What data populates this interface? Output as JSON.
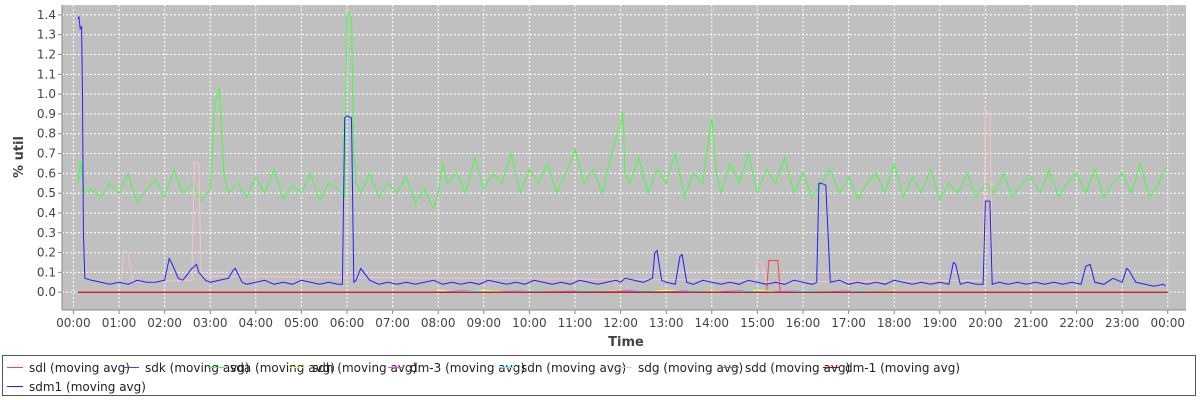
{
  "chart_data": {
    "type": "line",
    "title": "",
    "xlabel": "Time",
    "ylabel": "% util",
    "ylim": [
      -0.09,
      1.45
    ],
    "xlim": [
      -0.25,
      24.4
    ],
    "grid": true,
    "legend_position": "bottom",
    "y_ticks": [
      "0.0",
      "0.1",
      "0.2",
      "0.3",
      "0.4",
      "0.5",
      "0.6",
      "0.7",
      "0.8",
      "0.9",
      "1.0",
      "1.1",
      "1.2",
      "1.3",
      "1.4"
    ],
    "x_ticks": [
      "00:00",
      "01:00",
      "02:00",
      "03:00",
      "04:00",
      "05:00",
      "06:00",
      "07:00",
      "08:00",
      "09:00",
      "10:00",
      "11:00",
      "12:00",
      "13:00",
      "14:00",
      "15:00",
      "16:00",
      "17:00",
      "18:00",
      "19:00",
      "20:00",
      "21:00",
      "22:00",
      "23:00",
      "00:00"
    ],
    "series": [
      {
        "name": "sdl (moving avg)",
        "color": "#ff4040",
        "x": [
          0.1,
          15.2,
          15.25,
          15.3,
          15.45,
          15.5,
          24
        ],
        "y": [
          0.0,
          0.0,
          0.16,
          0.16,
          0.16,
          0.0,
          0.0
        ]
      },
      {
        "name": "sdk (moving avg)",
        "color": "#4040ff",
        "x": [],
        "y": []
      },
      {
        "name": "sda (moving avg)",
        "color": "#40ff40",
        "x": [
          0.1,
          0.15,
          0.25,
          0.4,
          0.6,
          0.8,
          1.0,
          1.2,
          1.4,
          1.6,
          1.8,
          2.0,
          2.2,
          2.4,
          2.6,
          2.8,
          3.0,
          3.1,
          3.2,
          3.3,
          3.4,
          3.6,
          3.8,
          4.0,
          4.2,
          4.4,
          4.6,
          4.8,
          5.0,
          5.2,
          5.4,
          5.6,
          5.8,
          5.95,
          6.0,
          6.05,
          6.1,
          6.15,
          6.2,
          6.3,
          6.5,
          6.7,
          6.9,
          7.1,
          7.3,
          7.5,
          7.7,
          7.9,
          8.0,
          8.1,
          8.2,
          8.4,
          8.6,
          8.8,
          9.0,
          9.2,
          9.4,
          9.6,
          9.8,
          10.0,
          10.2,
          10.4,
          10.6,
          10.8,
          11.0,
          11.2,
          11.4,
          11.6,
          11.8,
          12.0,
          12.05,
          12.1,
          12.2,
          12.4,
          12.6,
          12.8,
          13.0,
          13.2,
          13.4,
          13.6,
          13.8,
          14.0,
          14.1,
          14.2,
          14.4,
          14.6,
          14.8,
          15.0,
          15.2,
          15.4,
          15.6,
          15.8,
          16.0,
          16.2,
          16.4,
          16.6,
          16.8,
          17.0,
          17.2,
          17.4,
          17.6,
          17.8,
          18.0,
          18.2,
          18.4,
          18.6,
          18.8,
          19.0,
          19.2,
          19.4,
          19.6,
          19.8,
          20.0,
          20.2,
          20.4,
          20.6,
          20.8,
          21.0,
          21.2,
          21.4,
          21.6,
          21.8,
          22.0,
          22.2,
          22.4,
          22.6,
          22.8,
          23.0,
          23.2,
          23.4,
          23.6,
          23.8,
          23.95
        ],
        "y": [
          0.55,
          0.66,
          0.5,
          0.52,
          0.48,
          0.55,
          0.5,
          0.6,
          0.45,
          0.52,
          0.57,
          0.48,
          0.62,
          0.5,
          0.55,
          0.46,
          0.52,
          0.95,
          1.03,
          0.6,
          0.5,
          0.55,
          0.48,
          0.58,
          0.5,
          0.62,
          0.47,
          0.54,
          0.5,
          0.6,
          0.46,
          0.55,
          0.52,
          0.48,
          1.4,
          1.41,
          1.38,
          0.7,
          0.55,
          0.5,
          0.6,
          0.48,
          0.55,
          0.5,
          0.58,
          0.45,
          0.52,
          0.42,
          0.5,
          0.65,
          0.55,
          0.6,
          0.5,
          0.68,
          0.52,
          0.6,
          0.55,
          0.7,
          0.5,
          0.62,
          0.55,
          0.65,
          0.5,
          0.6,
          0.72,
          0.55,
          0.62,
          0.5,
          0.7,
          0.85,
          0.91,
          0.6,
          0.55,
          0.68,
          0.5,
          0.62,
          0.55,
          0.7,
          0.48,
          0.6,
          0.55,
          0.88,
          0.6,
          0.5,
          0.65,
          0.55,
          0.7,
          0.5,
          0.62,
          0.55,
          0.68,
          0.5,
          0.6,
          0.48,
          0.55,
          0.62,
          0.5,
          0.58,
          0.47,
          0.55,
          0.6,
          0.5,
          0.65,
          0.48,
          0.58,
          0.5,
          0.62,
          0.47,
          0.55,
          0.5,
          0.6,
          0.48,
          0.55,
          0.5,
          0.6,
          0.48,
          0.55,
          0.58,
          0.5,
          0.62,
          0.48,
          0.55,
          0.6,
          0.5,
          0.62,
          0.48,
          0.55,
          0.6,
          0.5,
          0.65,
          0.48,
          0.55,
          0.63
        ]
      },
      {
        "name": "sdh (moving avg)",
        "color": "#ffff40",
        "x": [
          8,
          8.5,
          9,
          9.5,
          10,
          10.5,
          11,
          11.5,
          12,
          12.5,
          13,
          13.5,
          14,
          14.5,
          15,
          15.5,
          16,
          16.5,
          17,
          17.5,
          18
        ],
        "y": [
          0.01,
          0.0,
          0.01,
          0.0,
          0.005,
          0.0,
          0.01,
          0.0,
          0.01,
          0.0,
          0.01,
          0.0,
          0.005,
          0.0,
          0.01,
          0.0,
          0.005,
          0.0,
          0.01,
          0.0,
          0.005
        ]
      },
      {
        "name": "dm-3 (moving avg)",
        "color": "#ff40ff",
        "x": [
          8,
          8.6,
          9.2,
          9.8,
          10.4,
          11,
          11.6,
          12.2,
          12.8,
          13.4,
          14,
          14.6,
          15.2,
          15.8,
          16.4,
          17,
          17.6,
          18
        ],
        "y": [
          0.0,
          0.008,
          0.0,
          0.006,
          0.0,
          0.008,
          0.0,
          0.01,
          0.0,
          0.006,
          0.0,
          0.008,
          0.0,
          0.006,
          0.0,
          0.008,
          0.0,
          0.0
        ]
      },
      {
        "name": "sdn (moving avg)",
        "color": "#40ffff",
        "x": [
          8.2,
          8.8,
          9.4,
          10,
          10.6,
          11.2,
          11.8,
          12.4,
          13,
          13.6,
          14.2,
          14.8,
          15.4,
          16,
          16.6,
          17.2,
          17.8
        ],
        "y": [
          0.0,
          0.006,
          0.0,
          0.005,
          0.0,
          0.006,
          0.0,
          0.007,
          0.0,
          0.005,
          0.0,
          0.006,
          0.0,
          0.005,
          0.0,
          0.006,
          0.0
        ]
      },
      {
        "name": "sdg (moving avg)",
        "color": "#ffc0c0",
        "x": [
          1.05,
          1.1,
          1.2,
          1.3,
          2.6,
          2.65,
          2.75,
          2.8,
          14.95,
          15.0,
          15.1,
          15.2,
          19.95,
          20.0,
          20.1,
          20.15
        ],
        "y": [
          0.05,
          0.21,
          0.2,
          0.05,
          0.06,
          0.66,
          0.65,
          0.08,
          0.06,
          0.15,
          0.15,
          0.05,
          0.06,
          0.92,
          0.9,
          0.06
        ]
      },
      {
        "name": "sdd (moving avg)",
        "color": "#808080",
        "x": [
          8,
          12,
          16,
          18
        ],
        "y": [
          0.0,
          0.003,
          0.0,
          0.002
        ]
      },
      {
        "name": "dm-1 (moving avg)",
        "color": "#c00000",
        "x": [
          0.1,
          24
        ],
        "y": [
          0.0,
          0.0
        ]
      },
      {
        "name": "sdm1 (moving avg)",
        "color": "#2020ff",
        "x": [
          0.1,
          0.12,
          0.15,
          0.18,
          0.2,
          0.22,
          0.25,
          0.4,
          0.6,
          0.8,
          1.0,
          1.2,
          1.4,
          1.6,
          1.8,
          2.0,
          2.1,
          2.15,
          2.3,
          2.4,
          2.6,
          2.7,
          2.75,
          2.9,
          3.0,
          3.2,
          3.4,
          3.5,
          3.55,
          3.7,
          3.8,
          4.0,
          4.2,
          4.4,
          4.6,
          4.8,
          5.0,
          5.2,
          5.4,
          5.6,
          5.8,
          5.9,
          5.95,
          6.0,
          6.1,
          6.15,
          6.2,
          6.3,
          6.5,
          6.7,
          6.9,
          7.1,
          7.3,
          7.5,
          7.7,
          7.9,
          8.1,
          8.3,
          8.5,
          8.7,
          8.9,
          9.1,
          9.3,
          9.5,
          9.7,
          9.9,
          10.1,
          10.3,
          10.5,
          10.7,
          10.9,
          11.1,
          11.3,
          11.5,
          11.7,
          11.9,
          12.0,
          12.1,
          12.3,
          12.5,
          12.7,
          12.75,
          12.8,
          12.9,
          13.0,
          13.2,
          13.3,
          13.35,
          13.45,
          13.6,
          13.8,
          14.0,
          14.2,
          14.4,
          14.6,
          14.8,
          15.0,
          15.2,
          15.4,
          15.6,
          15.8,
          16.0,
          16.2,
          16.3,
          16.35,
          16.4,
          16.5,
          16.6,
          16.8,
          17.0,
          17.2,
          17.4,
          17.6,
          17.8,
          18.0,
          18.2,
          18.4,
          18.6,
          18.8,
          19.0,
          19.2,
          19.3,
          19.35,
          19.45,
          19.6,
          19.8,
          19.95,
          20.0,
          20.1,
          20.15,
          20.3,
          20.5,
          20.7,
          20.9,
          21.1,
          21.3,
          21.5,
          21.7,
          21.9,
          22.1,
          22.2,
          22.3,
          22.4,
          22.6,
          22.8,
          23.0,
          23.1,
          23.15,
          23.3,
          23.5,
          23.7,
          23.9,
          23.95
        ],
        "y": [
          1.38,
          1.39,
          1.33,
          1.34,
          1.0,
          0.3,
          0.07,
          0.06,
          0.05,
          0.04,
          0.05,
          0.04,
          0.06,
          0.05,
          0.05,
          0.06,
          0.17,
          0.15,
          0.07,
          0.06,
          0.12,
          0.14,
          0.1,
          0.06,
          0.05,
          0.06,
          0.07,
          0.11,
          0.12,
          0.05,
          0.04,
          0.05,
          0.06,
          0.04,
          0.05,
          0.04,
          0.06,
          0.05,
          0.04,
          0.05,
          0.04,
          0.04,
          0.88,
          0.89,
          0.88,
          0.05,
          0.06,
          0.12,
          0.06,
          0.04,
          0.05,
          0.04,
          0.05,
          0.04,
          0.05,
          0.06,
          0.04,
          0.05,
          0.04,
          0.05,
          0.04,
          0.06,
          0.05,
          0.04,
          0.05,
          0.04,
          0.06,
          0.05,
          0.04,
          0.05,
          0.04,
          0.06,
          0.05,
          0.04,
          0.05,
          0.06,
          0.05,
          0.07,
          0.06,
          0.05,
          0.07,
          0.2,
          0.21,
          0.06,
          0.05,
          0.04,
          0.18,
          0.19,
          0.05,
          0.04,
          0.06,
          0.05,
          0.04,
          0.05,
          0.04,
          0.06,
          0.05,
          0.04,
          0.05,
          0.04,
          0.06,
          0.05,
          0.04,
          0.05,
          0.55,
          0.55,
          0.54,
          0.05,
          0.06,
          0.04,
          0.05,
          0.04,
          0.05,
          0.04,
          0.06,
          0.05,
          0.04,
          0.05,
          0.04,
          0.05,
          0.04,
          0.15,
          0.14,
          0.04,
          0.05,
          0.04,
          0.04,
          0.46,
          0.46,
          0.04,
          0.05,
          0.04,
          0.05,
          0.04,
          0.05,
          0.04,
          0.05,
          0.04,
          0.05,
          0.04,
          0.13,
          0.14,
          0.05,
          0.04,
          0.07,
          0.05,
          0.12,
          0.11,
          0.05,
          0.04,
          0.03,
          0.04,
          0.03
        ]
      }
    ]
  }
}
